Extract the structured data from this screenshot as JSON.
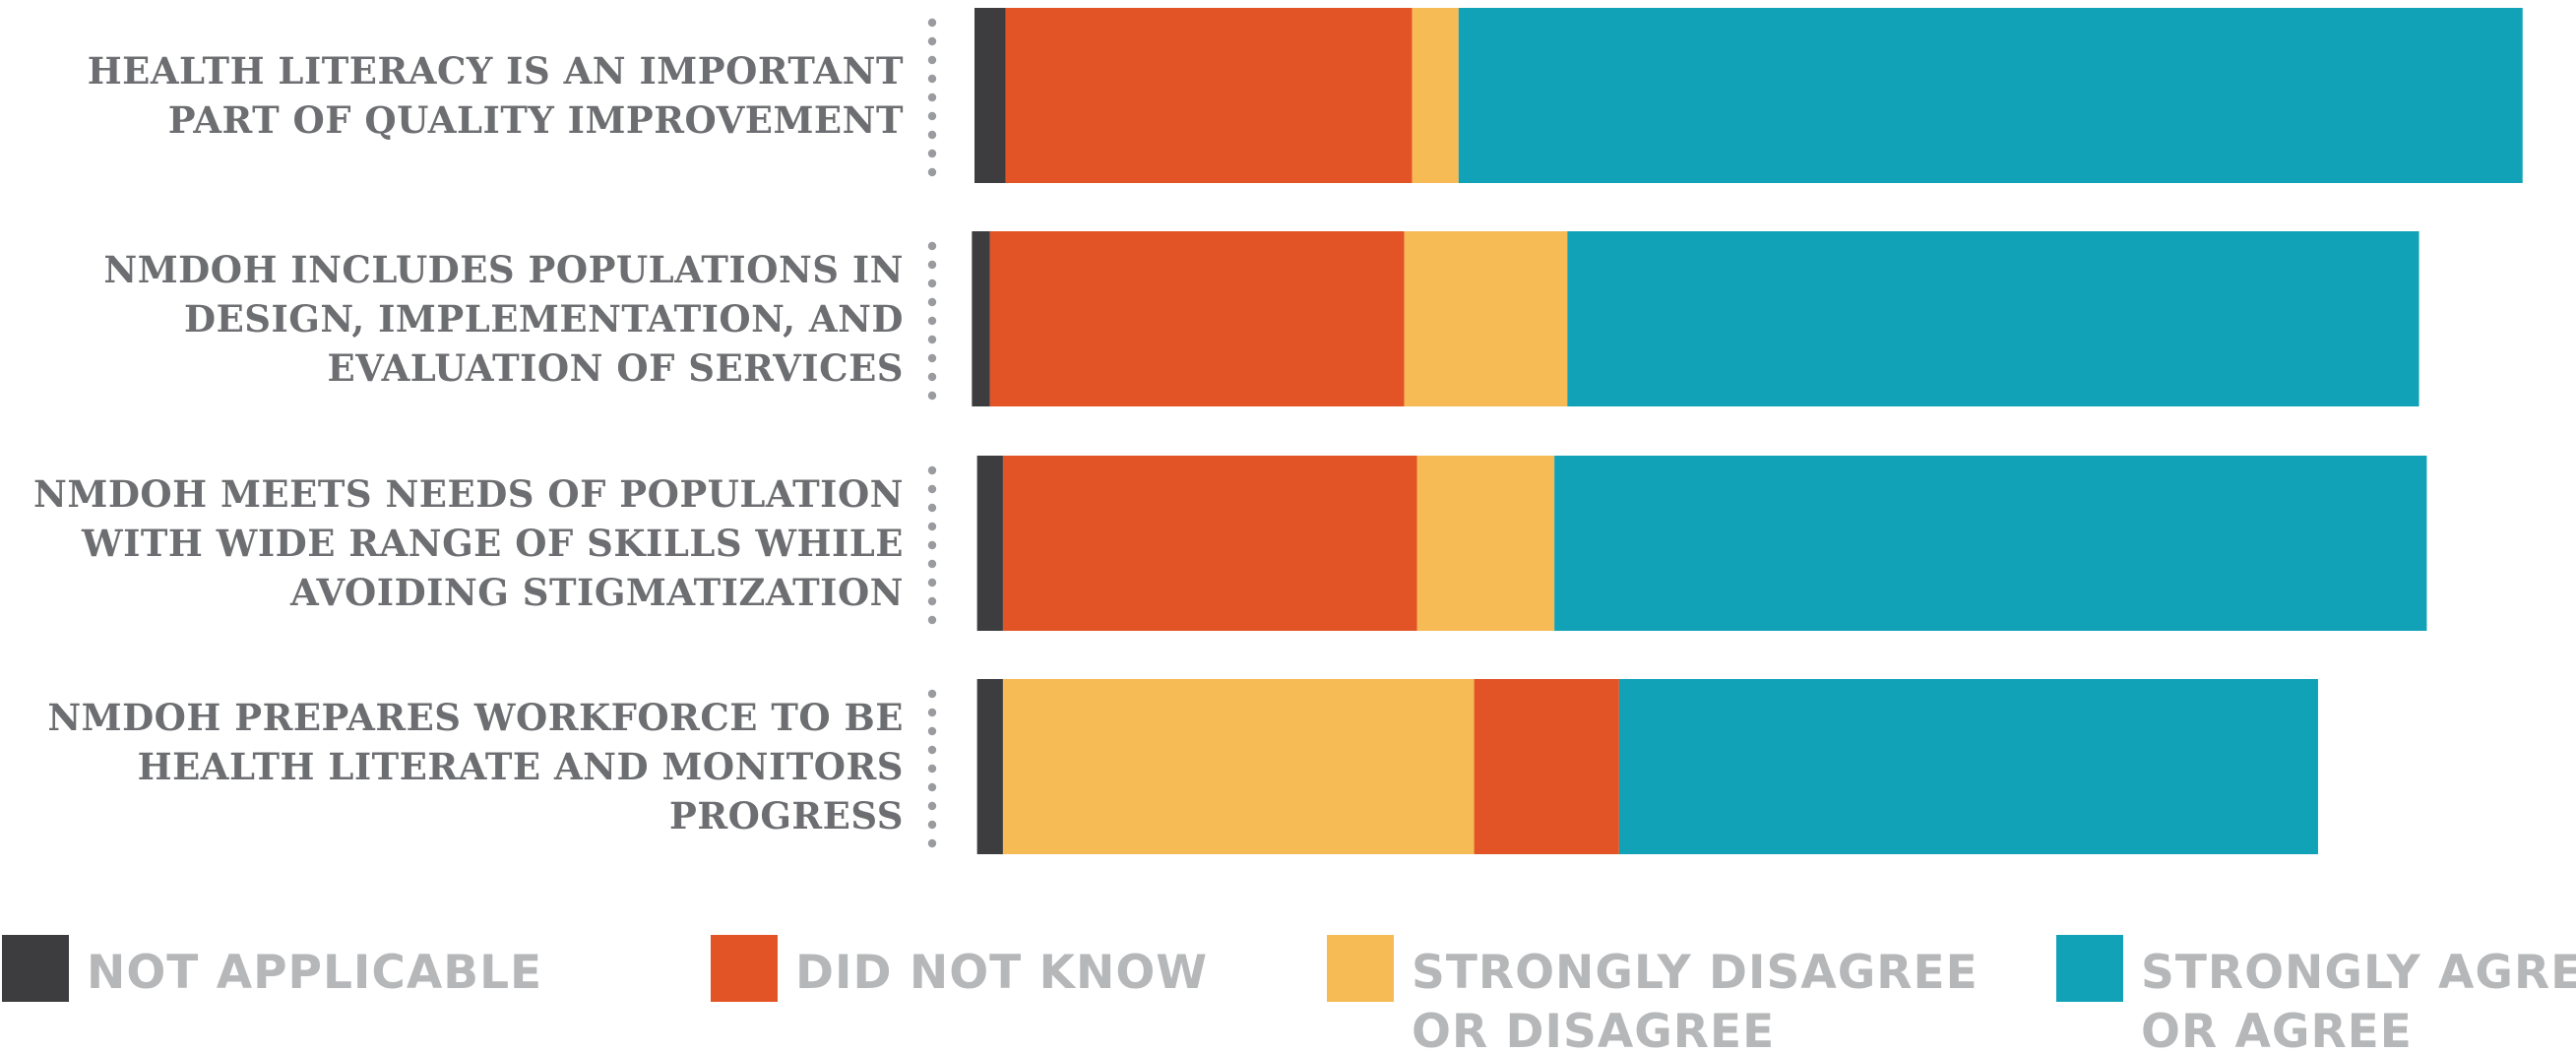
{
  "chart_data": {
    "type": "bar",
    "orientation": "horizontal",
    "stacked": true,
    "categories": [
      [
        "HEALTH LITERACY IS AN IMPORTANT",
        "PART OF QUALITY IMPROVEMENT"
      ],
      [
        "NMDOH INCLUDES POPULATIONS IN",
        "DESIGN, IMPLEMENTATION, AND",
        "EVALUATION OF SERVICES"
      ],
      [
        "NMDOH MEETS NEEDS OF POPULATION",
        "WITH WIDE RANGE OF SKILLS WHILE",
        "AVOIDING STIGMATIZATION"
      ],
      [
        "NMDOH PREPARES WORKFORCE TO BE",
        "HEALTH LITERATE AND MONITORS",
        "PROGRESS"
      ]
    ],
    "series": [
      {
        "name": "NOT APPLICABLE",
        "color": "#3d3c3f",
        "values": [
          1.2,
          0.7,
          1.0,
          1.0
        ]
      },
      {
        "name": "DID NOT KNOW",
        "color": "#e25325",
        "values": [
          15.7,
          16.0,
          16.0,
          5.6
        ]
      },
      {
        "name": "STRONGLY DISAGREE OR DISAGREE",
        "color": "#f6bb55",
        "values": [
          1.8,
          6.3,
          5.3,
          18.2
        ]
      },
      {
        "name": "STRONGLY AGREE OR AGREE",
        "color": "#12a2b8",
        "values": [
          41.1,
          32.9,
          33.7,
          27.0
        ]
      }
    ],
    "segment_order": [
      [
        0,
        1,
        2,
        3
      ],
      [
        0,
        1,
        2,
        3
      ],
      [
        0,
        1,
        2,
        3
      ],
      [
        0,
        2,
        1,
        3
      ]
    ],
    "bar_start_offsets": [
      0.0,
      -0.1,
      0.1,
      0.1
    ],
    "legend": [
      {
        "lines": [
          "NOT APPLICABLE"
        ],
        "color": "#3d3c3f"
      },
      {
        "lines": [
          "DID NOT KNOW"
        ],
        "color": "#e25325"
      },
      {
        "lines": [
          "STRONGLY DISAGREE",
          "OR DISAGREE"
        ],
        "color": "#f6bb55"
      },
      {
        "lines": [
          "STRONGLY AGREE",
          "OR AGREE"
        ],
        "color": "#12a2b8"
      }
    ],
    "legend_position": "bottom",
    "title": "",
    "xlabel": "",
    "ylabel": "",
    "grid": false,
    "axes_visible": false
  }
}
